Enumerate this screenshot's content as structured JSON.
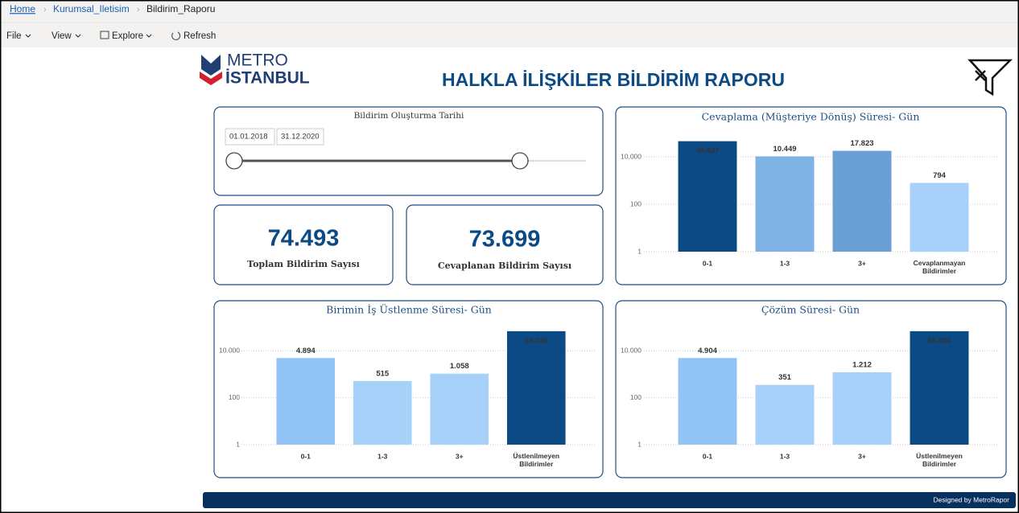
{
  "breadcrumb": [
    "Home",
    "Kurumsal_Iletisim",
    "Bildirim_Raporu"
  ],
  "toolbar": [
    "File",
    "View",
    "Explore",
    "Refresh"
  ],
  "header": {
    "logo_top": "METRO",
    "logo_bottom": "İSTANBUL",
    "title": "HALKLA İLİŞKİLER BİLDİRİM RAPORU"
  },
  "slicer": {
    "title": "Bildirim Oluşturma Tarihi",
    "start": "01.01.2018",
    "end": "31.12.2020"
  },
  "cards": [
    {
      "value": "74.493",
      "label": "Toplam Bildirim Sayısı"
    },
    {
      "value": "73.699",
      "label": "Cevaplanan Bildirim Sayısı"
    }
  ],
  "chart_data": [
    {
      "type": "bar",
      "title": "Cevaplama (Müşteriye Dönüş) Süresi- Gün",
      "categories": [
        "0-1",
        "1-3",
        "3+",
        "Cevaplanmayan Bildirimler"
      ],
      "values": [
        45427,
        10449,
        17823,
        794
      ],
      "value_labels": [
        "45.427",
        "10.449",
        "17.823",
        "794"
      ],
      "colors": [
        "#0b4a85",
        "#7fb2e5",
        "#6a9fd4",
        "#a7d1f9"
      ],
      "log_scale": true,
      "grid": true,
      "ylim": [
        1,
        100000
      ],
      "yticks": [
        1,
        100,
        {
          "value": 10000,
          "label": "10,000"
        }
      ]
    },
    {
      "type": "bar",
      "title": "Birimin İş Üstlenme Süresi- Gün",
      "categories": [
        "0-1",
        "1-3",
        "3+",
        "Üstlenilmeyen Bildirimler"
      ],
      "values": [
        4894,
        515,
        1058,
        68026
      ],
      "value_labels": [
        "4.894",
        "515",
        "1.058",
        "68.026"
      ],
      "colors": [
        "#92c5f5",
        "#a7d1f9",
        "#a7d1f9",
        "#0b4a85"
      ],
      "log_scale": true,
      "grid": true,
      "ylim": [
        1,
        100000
      ],
      "yticks": [
        1,
        100,
        {
          "value": 10000,
          "label": "10.000"
        }
      ]
    },
    {
      "type": "bar",
      "title": "Çözüm Süresi- Gün",
      "categories": [
        "0-1",
        "1-3",
        "3+",
        "Üstlenilmeyen Bildirimler"
      ],
      "values": [
        4904,
        351,
        1212,
        68026
      ],
      "value_labels": [
        "4.904",
        "351",
        "1.212",
        "68.026"
      ],
      "colors": [
        "#92c5f5",
        "#a7d1f9",
        "#a7d1f9",
        "#0b4a85"
      ],
      "log_scale": true,
      "grid": true,
      "ylim": [
        1,
        100000
      ],
      "yticks": [
        1,
        100,
        {
          "value": 10000,
          "label": "10.000"
        }
      ]
    }
  ],
  "footer": "Designed by MetroRapor"
}
